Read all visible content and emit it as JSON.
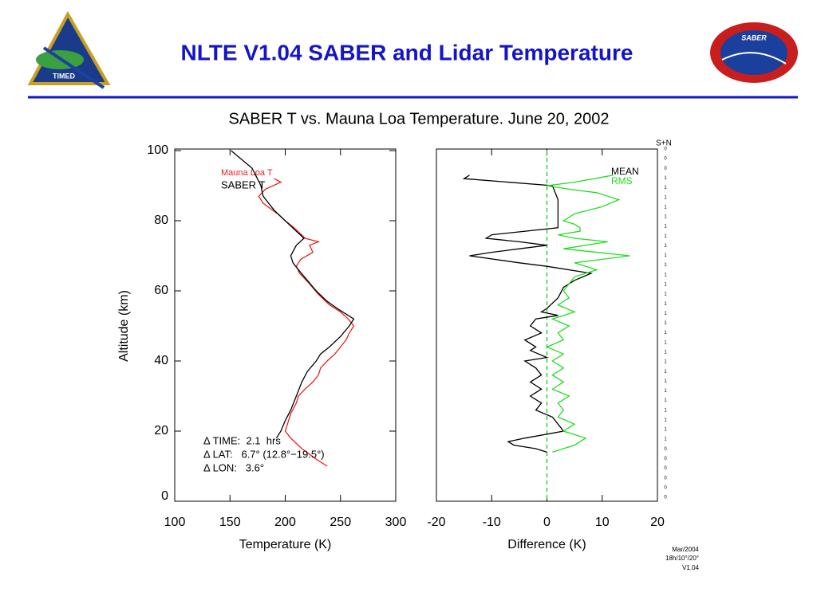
{
  "slide": {
    "title": "NLTE V1.04 SABER and Lidar Temperature",
    "left_logo": "TIMED",
    "right_logo": "SABER",
    "footer": [
      "Mar/2004",
      "18h/10°/20°",
      "V1.04"
    ]
  },
  "chart_data": [
    {
      "type": "line",
      "title": "SABER T vs. Mauna Loa Temperature. June 20, 2002",
      "x_label": "Temperature (K)",
      "y_label": "Altitude (km)",
      "xlim": [
        100,
        300
      ],
      "xticks": [
        100,
        150,
        200,
        250,
        300
      ],
      "ylim": [
        0,
        100
      ],
      "yticks": [
        0,
        20,
        40,
        60,
        80,
        100
      ],
      "annotations": [
        "Δ TIME:  2.1  hrs",
        "Δ LAT:   6.7° (12.8°−19.5°)",
        "Δ LON:   3.6°"
      ],
      "series": [
        {
          "name": "Mauna Loa T",
          "color": "#e8201c",
          "x": [
            190,
            196,
            182,
            176,
            180,
            193,
            200,
            208,
            218,
            230,
            222,
            225,
            214,
            210,
            213,
            222,
            230,
            240,
            250,
            257,
            262,
            258,
            255,
            250,
            245,
            238,
            232,
            230,
            225,
            218,
            212,
            210,
            205,
            202,
            200,
            205,
            215,
            228,
            238
          ],
          "y": [
            92,
            91,
            89,
            87,
            85,
            82,
            80,
            78,
            75,
            74,
            73,
            71,
            69,
            67,
            65,
            62,
            59,
            56,
            54,
            52,
            50,
            48,
            46,
            44,
            42,
            40,
            38,
            36,
            34,
            32,
            30,
            28,
            25,
            22,
            20,
            18,
            15,
            12,
            10
          ]
        },
        {
          "name": "SABER T",
          "color": "#000000",
          "x": [
            151,
            170,
            178,
            180,
            190,
            200,
            210,
            217,
            210,
            205,
            207,
            212,
            220,
            228,
            238,
            247,
            257,
            262,
            258,
            250,
            240,
            232,
            228,
            220,
            215,
            210,
            205,
            200,
            196,
            192
          ],
          "y": [
            100,
            95,
            90,
            87,
            83,
            80,
            77,
            75,
            73,
            70,
            68,
            66,
            63,
            60,
            57,
            55,
            53,
            52,
            50,
            47,
            44,
            42,
            40,
            37,
            34,
            30,
            26,
            23,
            20,
            18
          ]
        }
      ]
    },
    {
      "type": "line",
      "x_label": "Difference (K)",
      "xlim": [
        -20,
        20
      ],
      "xticks": [
        -20,
        -10,
        0,
        10,
        20
      ],
      "ylim": [
        0,
        100
      ],
      "reference_line": {
        "x": 0,
        "color": "#00cc00",
        "style": "dashed"
      },
      "flag_label": "S+N",
      "flags": [
        "0",
        "0",
        "0",
        "1",
        "1",
        "1",
        "1",
        "1",
        "1",
        "1",
        "1",
        "1",
        "1",
        "1",
        "1",
        "1",
        "1",
        "1",
        "1",
        "1",
        "1",
        "1",
        "1",
        "1",
        "1",
        "1",
        "1",
        "1",
        "1",
        "1",
        "1",
        "0",
        "0",
        "0",
        "0",
        "0",
        "0"
      ],
      "series": [
        {
          "name": "MEAN",
          "color": "#000000",
          "x": [
            -14,
            -15,
            1,
            2,
            2,
            2,
            -10,
            -11,
            -5,
            0,
            -5,
            -10,
            -14,
            -5,
            0,
            8,
            5,
            3,
            2,
            0,
            -1,
            2,
            -2,
            -3,
            -1,
            -4,
            -2,
            -3,
            0,
            -4,
            -2,
            -1,
            -3,
            -1,
            -3,
            -1,
            -2,
            1,
            2,
            3,
            -4,
            -7,
            -6,
            -2,
            0
          ],
          "y": [
            93,
            92,
            90,
            86,
            82,
            78,
            76,
            75,
            74,
            73,
            72,
            71,
            70,
            68,
            67,
            65,
            63,
            61,
            58,
            55,
            54,
            53,
            52,
            50,
            48,
            46,
            44,
            43,
            41,
            40,
            38,
            36,
            34,
            32,
            30,
            28,
            26,
            24,
            22,
            20,
            18,
            17,
            16,
            15,
            14
          ]
        },
        {
          "name": "RMS",
          "color": "#22dd22",
          "x": [
            12,
            5,
            0,
            4,
            9,
            13,
            10,
            5,
            3,
            5,
            6,
            6,
            2,
            5,
            11,
            3,
            15,
            5,
            9,
            5,
            4,
            3,
            4,
            2,
            5,
            1,
            4,
            2,
            3,
            0,
            3,
            1,
            3,
            1,
            3,
            1,
            4,
            2,
            3,
            2,
            5,
            3,
            7,
            5,
            1
          ],
          "y": [
            93,
            91,
            90,
            89,
            88,
            86,
            84,
            82,
            80,
            79,
            78,
            77,
            76,
            75,
            74,
            72,
            70,
            68,
            66,
            64,
            62,
            60,
            58,
            56,
            54,
            52,
            50,
            48,
            46,
            44,
            42,
            40,
            38,
            36,
            34,
            32,
            30,
            28,
            26,
            24,
            22,
            20,
            18,
            16,
            14
          ]
        }
      ]
    }
  ]
}
